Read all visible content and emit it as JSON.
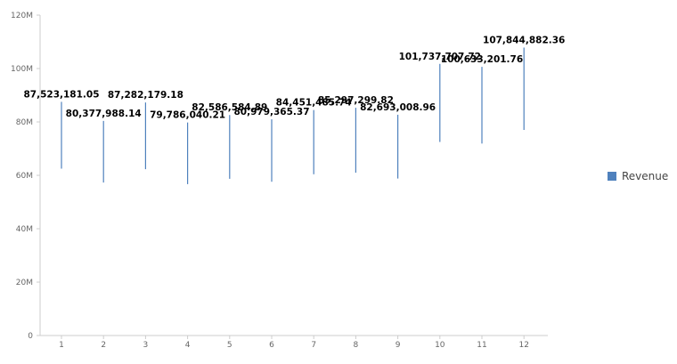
{
  "chart_data": {
    "type": "bar",
    "categories": [
      "1",
      "2",
      "3",
      "4",
      "5",
      "6",
      "7",
      "8",
      "9",
      "10",
      "11",
      "12"
    ],
    "series": [
      {
        "name": "Revenue",
        "color": "#4f81bd",
        "values": [
          87523181.05,
          80377988.14,
          87282179.18,
          79786040.21,
          82586584.89,
          80979365.37,
          84451485.74,
          85297299.82,
          82693008.96,
          101737707.72,
          100633201.76,
          107844882.36
        ],
        "lows": [
          62500000,
          57300000,
          62300000,
          56700000,
          58700000,
          57600000,
          60400000,
          61000000,
          58800000,
          72500000,
          71900000,
          77000000
        ],
        "labels": [
          "87,523,181.05",
          "80,377,988.14",
          "87,282,179.18",
          "79,786,040.21",
          "82,586,584.89",
          "80,979,365.37",
          "84,451,485.74",
          "85,297,299.82",
          "82,693,008.96",
          "101,737,707.72",
          "100,633,201.76",
          "107,844,882.36"
        ]
      }
    ],
    "y_ticks": [
      0,
      20000000,
      40000000,
      60000000,
      80000000,
      100000000,
      120000000
    ],
    "y_tick_labels": [
      "0",
      "20M",
      "40M",
      "60M",
      "80M",
      "100M",
      "120M"
    ],
    "ylim": [
      0,
      120000000
    ],
    "legend_position": "right"
  }
}
